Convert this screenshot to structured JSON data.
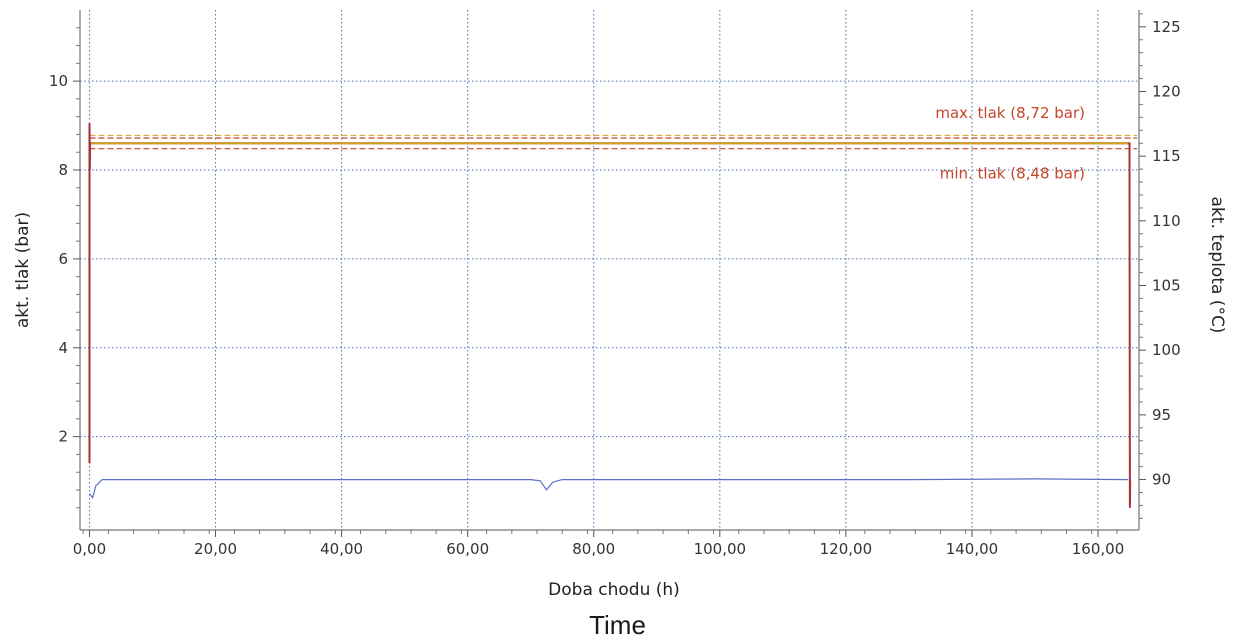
{
  "chart_data": {
    "type": "line",
    "xlabel": "Doba chodu (h)",
    "ylabel": "akt. tlak (bar)",
    "y2label": "akt. teplota (°C)",
    "caption": "Time",
    "xlim": [
      -1.5,
      166.5
    ],
    "ylim": [
      -0.1,
      11.6
    ],
    "y2lim": [
      86.1,
      126.3
    ],
    "x_ticks": [
      "0,00",
      "20,00",
      "40,00",
      "60,00",
      "80,00",
      "100,00",
      "120,00",
      "140,00",
      "160,00"
    ],
    "x_tick_values": [
      0,
      20,
      40,
      60,
      80,
      100,
      120,
      140,
      160
    ],
    "y_ticks": [
      "2",
      "4",
      "6",
      "8",
      "10"
    ],
    "y_tick_values": [
      2,
      4,
      6,
      8,
      10
    ],
    "y2_ticks": [
      "90",
      "95",
      "100",
      "105",
      "110",
      "115",
      "120",
      "125"
    ],
    "y2_tick_values": [
      90,
      95,
      100,
      105,
      110,
      115,
      120,
      125
    ],
    "grid": true,
    "reference_lines": [
      {
        "label": "max. tlak (8,72 bar)",
        "value": 8.72,
        "color": "#c8442a"
      },
      {
        "label": "min. tlak (8,48 bar)",
        "value": 8.48,
        "color": "#c8442a"
      }
    ],
    "series": [
      {
        "axis": "left",
        "color": "#a8303a",
        "x": [
          0,
          0,
          0.05,
          0.1,
          0.15,
          0.2,
          164.8,
          164.9,
          165.0,
          165.05,
          165.1
        ],
        "values": [
          1.4,
          9.05,
          8.0,
          8.62,
          8.6,
          8.6,
          8.6,
          8.6,
          8.6,
          0.4,
          1.0
        ]
      },
      {
        "axis": "left",
        "color": "#d2a020",
        "x": [
          0.3,
          164.8
        ],
        "values": [
          8.6,
          8.6
        ]
      },
      {
        "axis": "right",
        "color": "#5a6fc8",
        "x": [
          0,
          0.5,
          1.0,
          2.0,
          10,
          30,
          50,
          70,
          71.5,
          72.5,
          73.5,
          75,
          100,
          130,
          150,
          164.8
        ],
        "values": [
          88.9,
          88.6,
          89.5,
          90.0,
          90.0,
          90.0,
          90.0,
          90.0,
          89.9,
          89.2,
          89.8,
          90.0,
          90.0,
          90.0,
          90.05,
          90.0
        ]
      }
    ]
  }
}
